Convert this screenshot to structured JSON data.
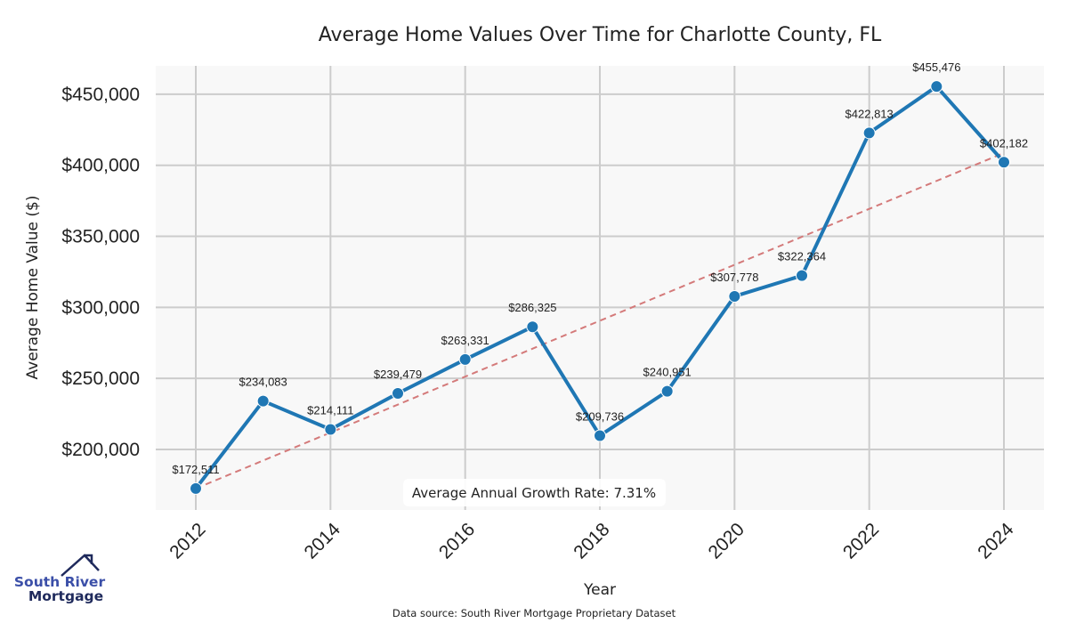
{
  "chart_data": {
    "type": "line",
    "title": "Average Home Values Over Time for Charlotte County, FL",
    "xlabel": "Year",
    "ylabel": "Average Home Value ($)",
    "x": [
      2012,
      2013,
      2014,
      2015,
      2016,
      2017,
      2018,
      2019,
      2020,
      2021,
      2022,
      2023,
      2024
    ],
    "series": [
      {
        "name": "Average Home Value",
        "color": "#1f77b4",
        "values": [
          172511,
          234083,
          214111,
          239479,
          263331,
          286325,
          209736,
          240951,
          307778,
          322364,
          422813,
          455476,
          402182
        ],
        "labels": [
          "$172,511",
          "$234,083",
          "$214,111",
          "$239,479",
          "$263,331",
          "$286,325",
          "$209,736",
          "$240,951",
          "$307,778",
          "$322,364",
          "$422,813",
          "$455,476",
          "$402,182"
        ]
      }
    ],
    "trend": {
      "name": "Trend line",
      "color": "#d47a7a",
      "style": "dashed",
      "start": [
        2012,
        172511
      ],
      "end": [
        2024,
        408700
      ]
    },
    "xticks": [
      2012,
      2014,
      2016,
      2018,
      2020,
      2022,
      2024
    ],
    "xtick_labels": [
      "2012",
      "2014",
      "2016",
      "2018",
      "2020",
      "2022",
      "2024"
    ],
    "yticks": [
      200000,
      250000,
      300000,
      350000,
      400000,
      450000
    ],
    "ytick_labels": [
      "$200,000",
      "$250,000",
      "$300,000",
      "$350,000",
      "$400,000",
      "$450,000"
    ],
    "xlim": [
      2011.4,
      2024.6
    ],
    "ylim": [
      157400,
      470000
    ],
    "grid": true,
    "background": "#f8f8f8",
    "grid_color": "#cccccc",
    "annotation": "Average Annual Growth Rate: 7.31%",
    "source": "Data source: South River Mortgage Proprietary Dataset"
  },
  "logo": {
    "line1": "South River",
    "line2": "Mortgage",
    "color1": "#3b4fa8",
    "color2": "#1f2a5c"
  }
}
